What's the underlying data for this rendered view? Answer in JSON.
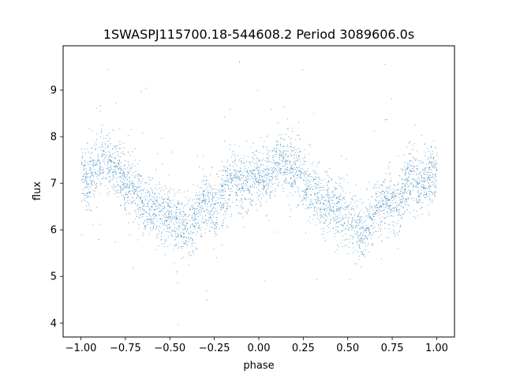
{
  "chart_data": {
    "type": "scatter",
    "title": "1SWASPJ115700.18-544608.2 Period 3089606.0s",
    "xlabel": "phase",
    "ylabel": "flux",
    "xlim": [
      -1.1,
      1.1
    ],
    "ylim": [
      3.7,
      9.95
    ],
    "xticks": [
      -1.0,
      -0.75,
      -0.5,
      -0.25,
      0.0,
      0.25,
      0.5,
      0.75,
      1.0
    ],
    "xtick_labels": [
      "−1.00",
      "−0.75",
      "−0.50",
      "−0.25",
      "0.00",
      "0.25",
      "0.50",
      "0.75",
      "1.00"
    ],
    "yticks": [
      4,
      5,
      6,
      7,
      8,
      9
    ],
    "ytick_labels": [
      "4",
      "5",
      "6",
      "7",
      "8",
      "9"
    ],
    "grid": false,
    "legend": "none",
    "marker_color": "#1f77b4",
    "series": [
      {
        "description_note": "",
        "x": [
          -1.0,
          -0.97,
          -0.93,
          -0.9,
          -0.87,
          -0.85,
          -0.82,
          -0.8,
          -0.77,
          -0.75,
          -0.72,
          -0.7,
          -0.67,
          -0.65,
          -0.62,
          -0.6,
          -0.57,
          -0.55,
          -0.52,
          -0.5,
          -0.47,
          -0.45,
          -0.42,
          -0.4,
          -0.37,
          -0.35,
          -0.32,
          -0.3,
          -0.27,
          -0.25,
          -0.22,
          -0.2,
          -0.17,
          -0.15,
          -0.12,
          -0.1,
          -0.07,
          -0.05,
          -0.02,
          0.0,
          0.03,
          0.07,
          0.1,
          0.13,
          0.15,
          0.18,
          0.2,
          0.23,
          0.25,
          0.28,
          0.3,
          0.33,
          0.35,
          0.38,
          0.4,
          0.43,
          0.45,
          0.48,
          0.5,
          0.53,
          0.55,
          0.58,
          0.6,
          0.63,
          0.65,
          0.68,
          0.7,
          0.73,
          0.75,
          0.78,
          0.8,
          0.83,
          0.85,
          0.88,
          0.9,
          0.93,
          0.95,
          0.98,
          1.0
        ],
        "y": [
          7.25,
          7.1,
          7.2,
          7.4,
          7.5,
          7.45,
          7.35,
          7.3,
          7.15,
          7.05,
          6.95,
          6.85,
          6.75,
          6.6,
          6.5,
          6.55,
          6.45,
          6.4,
          6.35,
          6.3,
          6.2,
          6.1,
          5.95,
          6.05,
          6.2,
          6.4,
          6.55,
          6.6,
          6.55,
          6.5,
          6.6,
          6.8,
          7.0,
          7.1,
          7.0,
          6.95,
          7.0,
          7.1,
          7.2,
          7.25,
          7.1,
          7.2,
          7.4,
          7.5,
          7.45,
          7.35,
          7.3,
          7.15,
          7.05,
          6.95,
          6.85,
          6.75,
          6.6,
          6.5,
          6.55,
          6.45,
          6.4,
          6.35,
          6.3,
          6.2,
          6.1,
          5.95,
          6.05,
          6.2,
          6.4,
          6.55,
          6.6,
          6.55,
          6.5,
          6.6,
          6.8,
          7.0,
          7.1,
          7.0,
          6.95,
          7.0,
          7.1,
          7.2,
          7.25
        ]
      }
    ]
  }
}
